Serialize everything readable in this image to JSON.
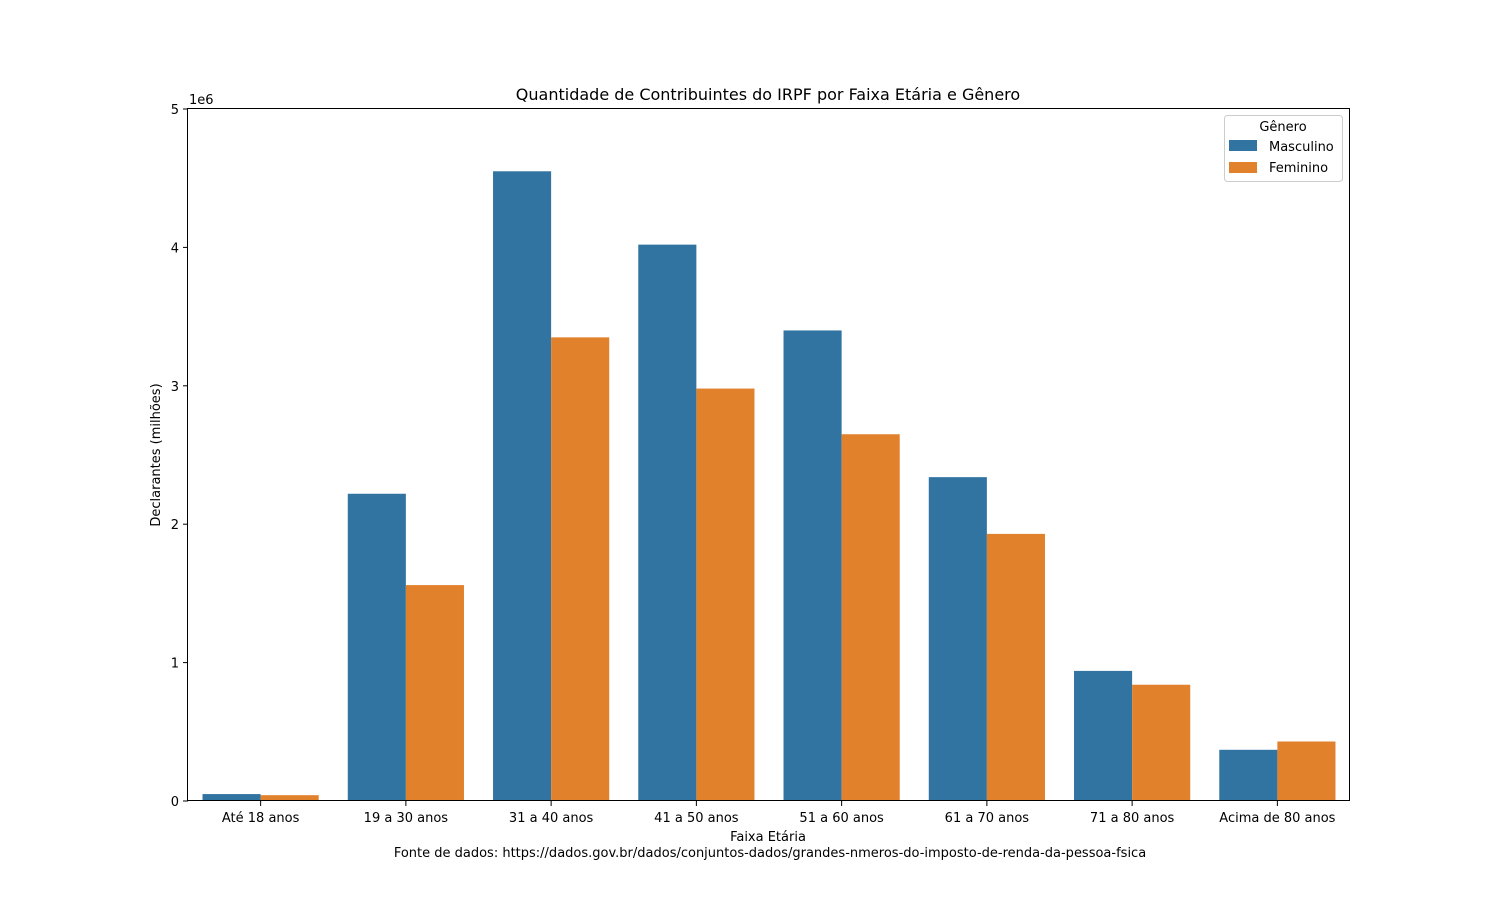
{
  "chart_data": {
    "type": "bar",
    "title": "Quantidade de Contribuintes do IRPF por Faixa Etária e Gênero",
    "xlabel": "Faixa Etária",
    "ylabel": "Declarantes (milhões)",
    "y_offset_label": "1e6",
    "source_note": "Fonte de dados: https://dados.gov.br/dados/conjuntos-dados/grandes-nmeros-do-imposto-de-renda-da-pessoa-fsica",
    "categories": [
      "Até 18 anos",
      "19 a 30 anos",
      "31 a 40 anos",
      "41 a 50 anos",
      "51 a 60 anos",
      "61 a 70 anos",
      "71 a 80 anos",
      "Acima de 80 anos"
    ],
    "series": [
      {
        "name": "Masculino",
        "color": "#3274a1",
        "values": [
          50000,
          2220000,
          4550000,
          4020000,
          3400000,
          2340000,
          940000,
          370000
        ]
      },
      {
        "name": "Feminino",
        "color": "#e1812c",
        "values": [
          42000,
          1560000,
          3350000,
          2980000,
          2650000,
          1930000,
          840000,
          430000
        ]
      }
    ],
    "ylim": [
      0,
      5000000
    ],
    "yticks": [
      0,
      1000000,
      2000000,
      3000000,
      4000000,
      5000000
    ],
    "ytick_labels": [
      "0",
      "1",
      "2",
      "3",
      "4",
      "5"
    ],
    "legend": {
      "title": "Gênero",
      "placement": "top-right"
    },
    "grid": false
  }
}
